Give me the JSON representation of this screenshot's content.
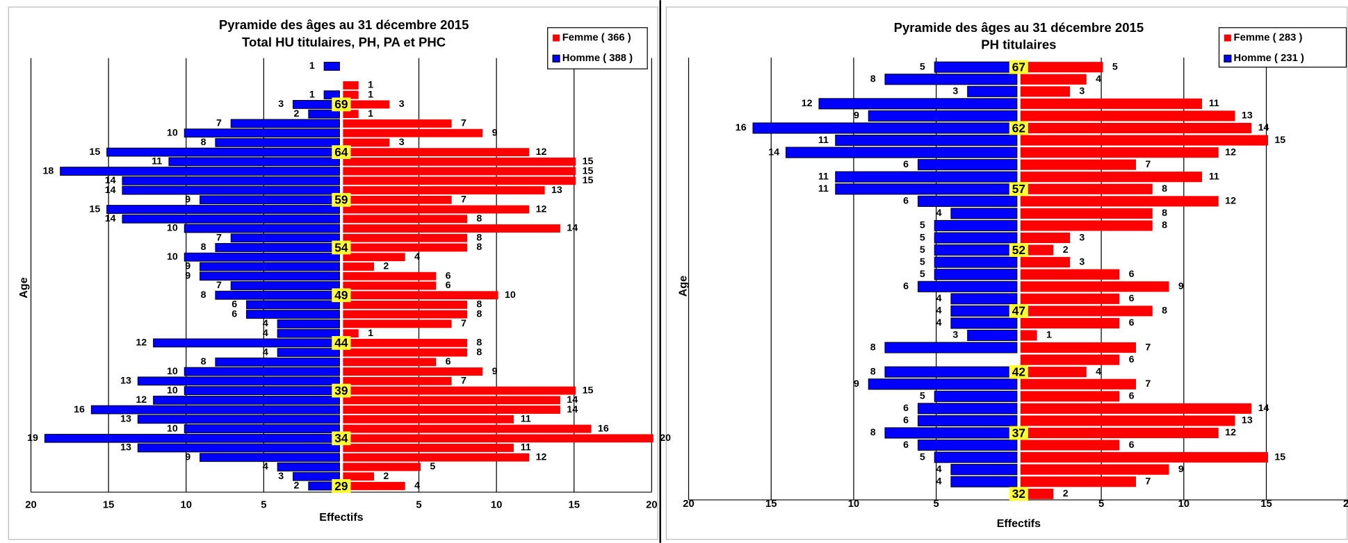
{
  "chart_data": [
    {
      "type": "pyramid",
      "title": "Pyramide des âges au 31 décembre 2015",
      "subtitle": "Total HU titulaires, PH, PA et PHC",
      "xlabel": "Effectifs",
      "ylabel": "Age",
      "legend": "upper right",
      "grid": true,
      "xlim": [
        -20,
        20
      ],
      "xticks": [
        {
          "value": -20,
          "label": "20"
        },
        {
          "value": -15,
          "label": "15"
        },
        {
          "value": -10,
          "label": "10"
        },
        {
          "value": -5,
          "label": "5"
        },
        5,
        10,
        15,
        20
      ],
      "categories": [
        null,
        null,
        null,
        null,
        "69",
        null,
        null,
        null,
        null,
        "64",
        null,
        null,
        null,
        null,
        "59",
        null,
        null,
        null,
        null,
        "54",
        null,
        null,
        null,
        null,
        "49",
        null,
        null,
        null,
        null,
        "44",
        null,
        null,
        null,
        null,
        "39",
        null,
        null,
        null,
        null,
        "34",
        null,
        null,
        null,
        null,
        "29"
      ],
      "series": [
        {
          "name": "Femme ( 366 )",
          "color": "#ff0000",
          "direction": "right",
          "values": [
            0,
            0,
            1,
            1,
            3,
            1,
            7,
            9,
            3,
            12,
            15,
            15,
            15,
            13,
            7,
            12,
            8,
            14,
            8,
            8,
            4,
            2,
            6,
            6,
            10,
            8,
            8,
            7,
            1,
            8,
            8,
            6,
            9,
            7,
            15,
            14,
            14,
            11,
            16,
            20,
            11,
            12,
            5,
            2,
            4
          ]
        },
        {
          "name": "Homme ( 388 )",
          "color": "#0000ff",
          "direction": "left",
          "values": [
            1,
            0,
            0,
            1,
            3,
            2,
            7,
            10,
            8,
            15,
            11,
            18,
            14,
            14,
            9,
            15,
            14,
            10,
            7,
            8,
            10,
            9,
            9,
            7,
            8,
            6,
            6,
            4,
            4,
            12,
            4,
            8,
            10,
            13,
            10,
            12,
            16,
            13,
            10,
            19,
            13,
            9,
            4,
            3,
            2
          ]
        }
      ]
    },
    {
      "type": "pyramid",
      "title": "Pyramide des âges au 31 décembre 2015",
      "subtitle": "PH titulaires",
      "xlabel": "Effectifs",
      "ylabel": "Age",
      "legend": "upper right",
      "grid": true,
      "xlim": [
        -20,
        20
      ],
      "xticks": [
        {
          "value": -20,
          "label": "20"
        },
        {
          "value": -15,
          "label": "15"
        },
        {
          "value": -10,
          "label": "10"
        },
        {
          "value": -5,
          "label": "5"
        },
        5,
        10,
        15,
        20
      ],
      "categories": [
        "67",
        null,
        null,
        null,
        null,
        "62",
        null,
        null,
        null,
        null,
        "57",
        null,
        null,
        null,
        null,
        "52",
        null,
        null,
        null,
        null,
        "47",
        null,
        null,
        null,
        null,
        "42",
        null,
        null,
        null,
        null,
        "37",
        null,
        null,
        null,
        null,
        "32"
      ],
      "series": [
        {
          "name": "Femme ( 283 )",
          "color": "#ff0000",
          "direction": "right",
          "values": [
            5,
            4,
            3,
            11,
            13,
            14,
            15,
            12,
            7,
            11,
            8,
            12,
            8,
            8,
            3,
            2,
            3,
            6,
            9,
            6,
            8,
            6,
            1,
            7,
            6,
            4,
            7,
            6,
            14,
            13,
            12,
            6,
            15,
            9,
            7,
            2
          ]
        },
        {
          "name": "Homme ( 231 )",
          "color": "#0000ff",
          "direction": "left",
          "values": [
            5,
            8,
            3,
            12,
            9,
            16,
            11,
            14,
            6,
            11,
            11,
            6,
            4,
            5,
            5,
            5,
            5,
            5,
            6,
            4,
            4,
            4,
            3,
            8,
            0,
            8,
            9,
            5,
            6,
            6,
            8,
            6,
            5,
            4,
            4,
            0
          ]
        }
      ]
    }
  ]
}
